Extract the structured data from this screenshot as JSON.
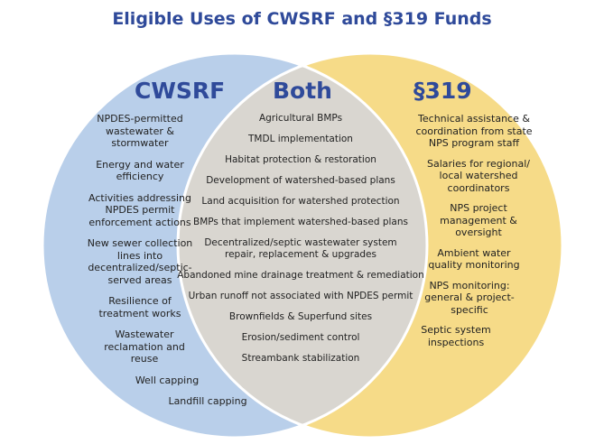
{
  "title": "Eligible Uses of CWSRF and §319 Funds",
  "colors": {
    "title": "#2f4a9a",
    "cwsrf_fill": "#b9cfea",
    "s319_fill": "#f6db88",
    "both_fill": "#d9d6d0",
    "divider": "#ffffff"
  },
  "cwsrf": {
    "heading": "CWSRF",
    "items": [
      "NPDES-permitted wastewater & stormwater",
      "Energy and water efficiency",
      "Activities addressing NPDES permit enforcement actions",
      "New sewer collection lines into decentralized/septic-served areas",
      "Resilience of treatment works",
      "Wastewater reclamation and reuse",
      "Well capping",
      "Landfill capping"
    ]
  },
  "both": {
    "heading": "Both",
    "items": [
      "Agricultural BMPs",
      "TMDL implementation",
      "Habitat protection & restoration",
      "Development of watershed-based plans",
      "Land acquisition for watershed protection",
      "BMPs that implement watershed-based plans",
      "Decentralized/septic wastewater system repair, replacement & upgrades",
      "Abandoned mine drainage treatment & remediation",
      "Urban runoff not associated with NPDES permit",
      "Brownfields & Superfund sites",
      "Erosion/sediment control",
      "Streambank stabilization"
    ]
  },
  "s319": {
    "heading": "§319",
    "items": [
      "Technical assistance & coordination from state NPS program staff",
      "Salaries for regional/ local watershed coordinators",
      "NPS project management & oversight",
      "Ambient water quality monitoring",
      "NPS monitoring: general & project-specific",
      "Septic system inspections"
    ]
  }
}
